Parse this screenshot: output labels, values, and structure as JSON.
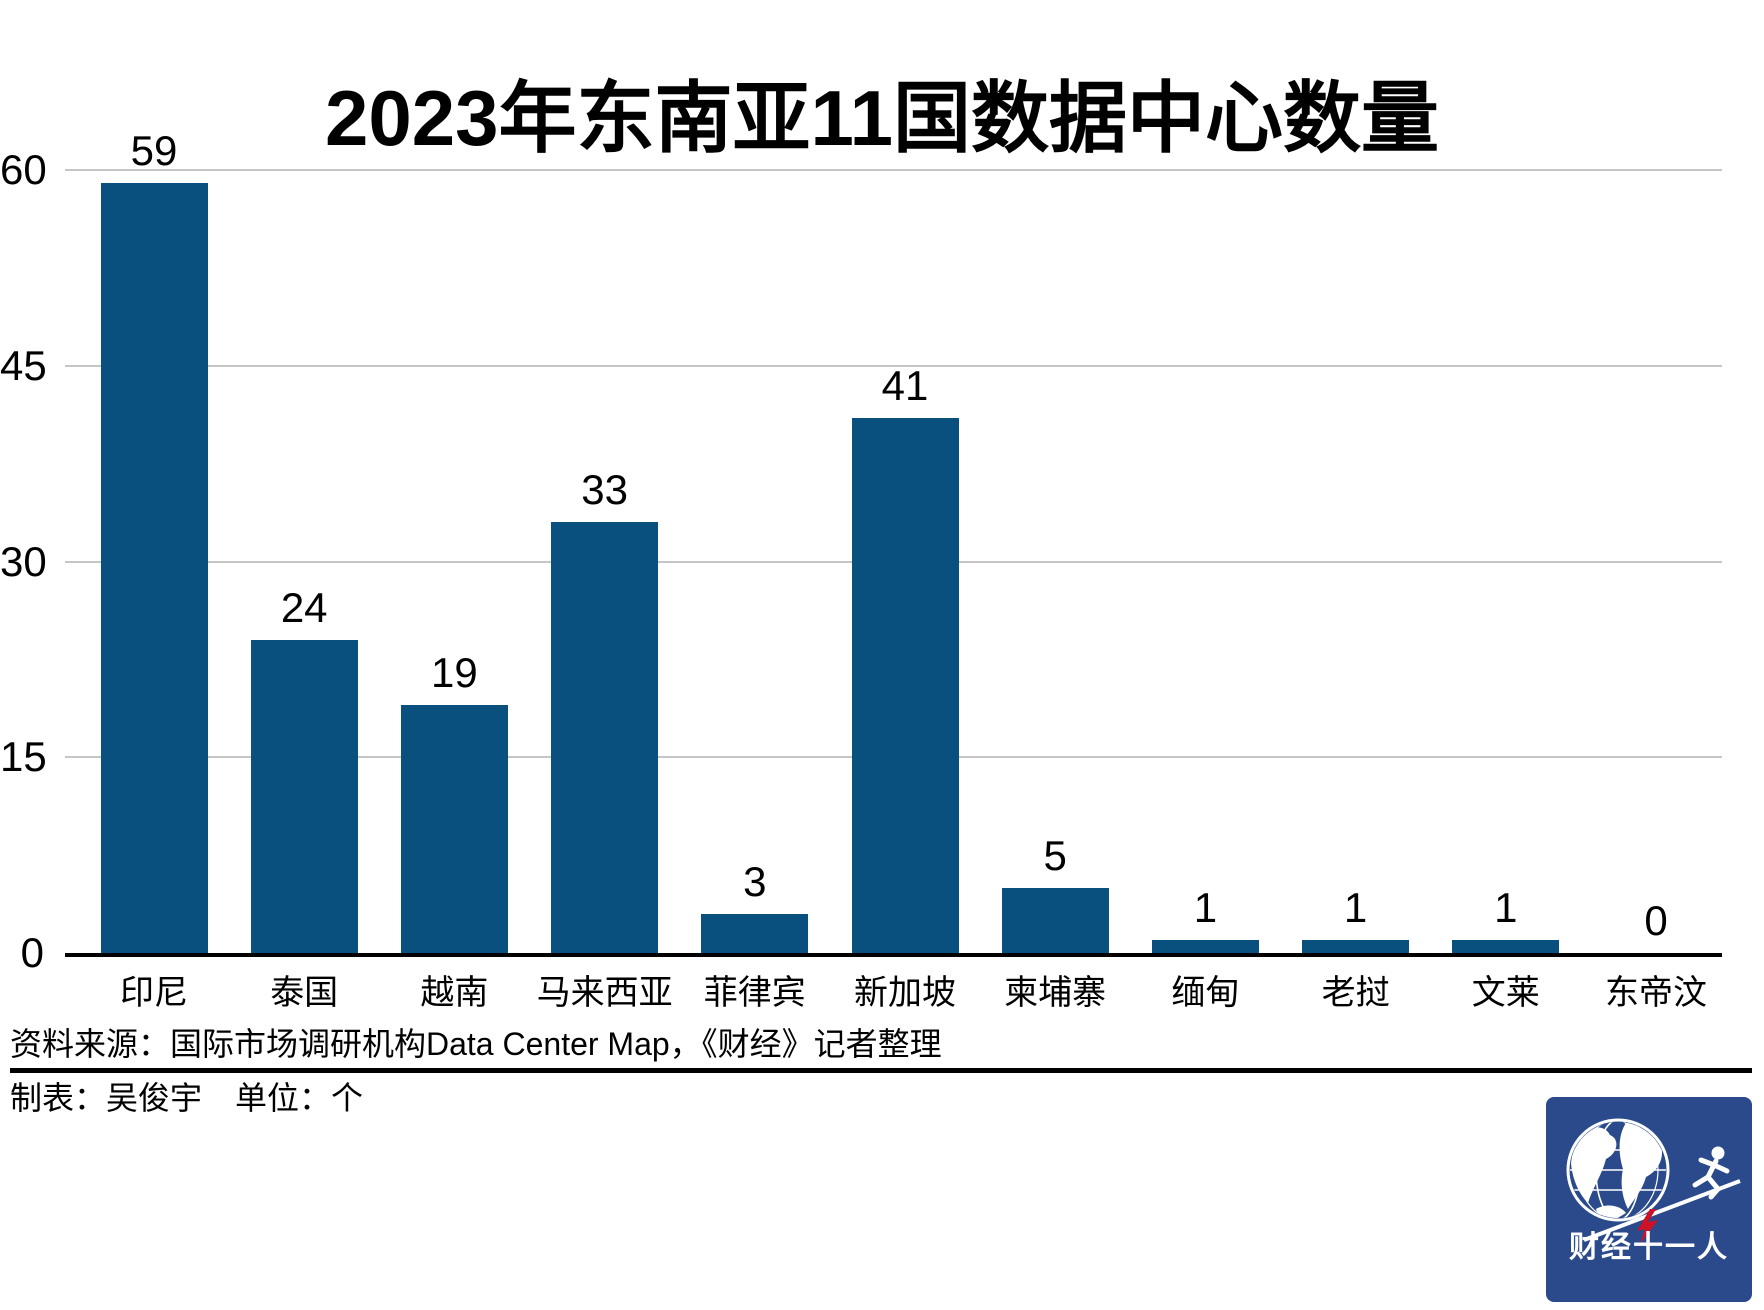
{
  "chart_data": {
    "type": "bar",
    "title": "2023年东南亚11国数据中心数量",
    "categories": [
      "印尼",
      "泰国",
      "越南",
      "马来西亚",
      "菲律宾",
      "新加坡",
      "柬埔寨",
      "缅甸",
      "老挝",
      "文莱",
      "东帝汶"
    ],
    "values": [
      59,
      24,
      19,
      33,
      3,
      41,
      5,
      1,
      1,
      1,
      0
    ],
    "xlabel": "",
    "ylabel": "",
    "ylim": [
      0,
      60
    ],
    "yticks": [
      0,
      15,
      30,
      45,
      60
    ],
    "grid": true,
    "legend": "none",
    "value_labels_shown": true,
    "bar_color": "#09507E",
    "grid_color": "#C6C6C6",
    "axis_color": "#000000"
  },
  "footer": {
    "source": "资料来源：国际市场调研机构Data Center Map，《财经》记者整理",
    "credit": "制表：吴俊宇",
    "unit": "单位：个",
    "logo_text": "财经十一人",
    "logo_bg_color": "#2B4A8C",
    "logo_bolt_color": "#CE1126"
  }
}
